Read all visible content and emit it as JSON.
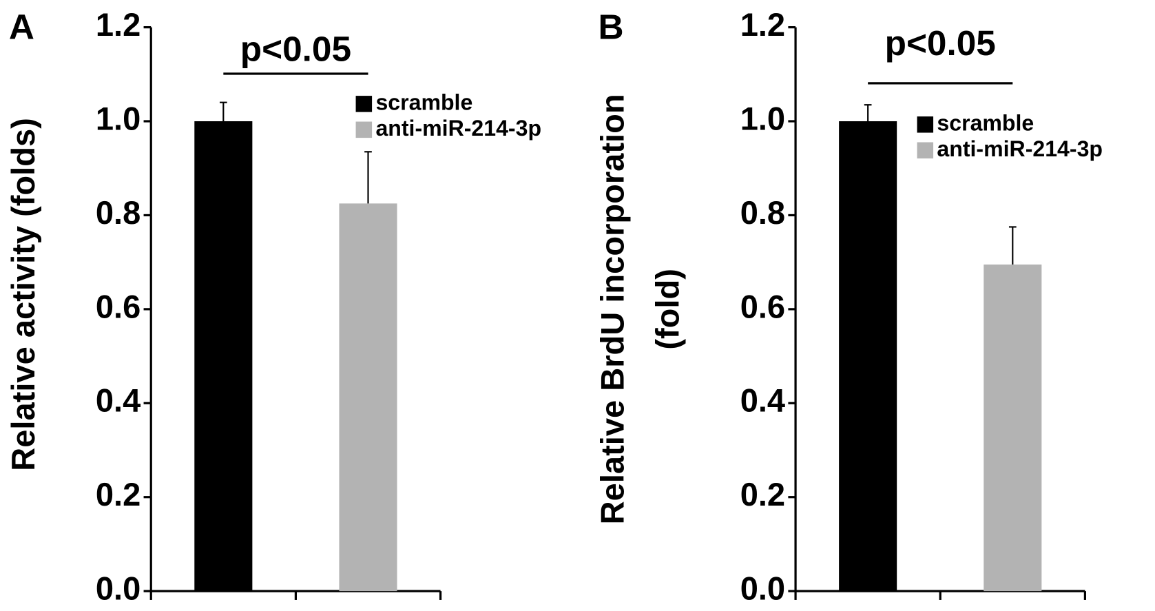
{
  "chart_data": [
    {
      "type": "bar",
      "panel_label": "A",
      "ylabel": "Relative activity (folds)",
      "categories": [
        null,
        null
      ],
      "series": [
        {
          "name": "scramble",
          "color": "#000000",
          "values": [
            1.0,
            null
          ],
          "errors": [
            0.04,
            null
          ]
        },
        {
          "name": "anti-miR-214-3p",
          "color": "#b3b3b3",
          "values": [
            null,
            0.825
          ],
          "errors": [
            null,
            0.11
          ]
        }
      ],
      "annotation": "p<0.05",
      "ylim": [
        0,
        1.2
      ],
      "yticks": [
        {
          "value": 0,
          "label": "0.0"
        },
        0.2,
        0.4,
        0.6,
        0.8,
        {
          "value": 1,
          "label": "1.0"
        },
        1.2
      ]
    },
    {
      "type": "bar",
      "panel_label": "B",
      "ylabel": [
        "Relative BrdU incorporation",
        "(fold)"
      ],
      "categories": [
        null,
        null
      ],
      "series": [
        {
          "name": "scramble",
          "color": "#000000",
          "values": [
            1.0,
            null
          ],
          "errors": [
            0.035,
            null
          ]
        },
        {
          "name": "anti-miR-214-3p",
          "color": "#b3b3b3",
          "values": [
            null,
            0.695
          ],
          "errors": [
            null,
            0.08
          ]
        }
      ],
      "annotation": "p<0.05",
      "ylim": [
        0,
        1.2
      ],
      "yticks": [
        {
          "value": 0,
          "label": "0.0"
        },
        0.2,
        0.4,
        0.6,
        0.8,
        {
          "value": 1,
          "label": "1.0"
        },
        1.2
      ]
    }
  ]
}
